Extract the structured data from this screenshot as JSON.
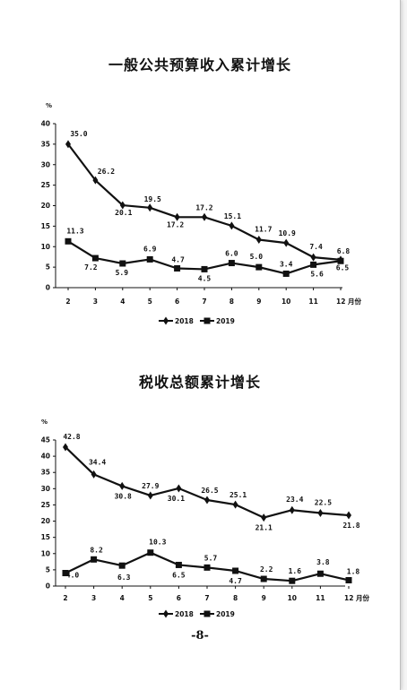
{
  "page_number": "-8-",
  "chart_data": [
    {
      "type": "line",
      "title": "一般公共预算收入累计增长",
      "ylabel": "%",
      "x_tick_labels": [
        "2",
        "3",
        "4",
        "5",
        "6",
        "7",
        "8",
        "9",
        "10",
        "11",
        "12 月份"
      ],
      "ylim": [
        0,
        40
      ],
      "yticks": [
        0,
        5,
        10,
        15,
        20,
        25,
        30,
        35,
        40
      ],
      "legend_placement": "bottom-center",
      "series": [
        {
          "name": "2018",
          "marker": "diamond",
          "values": [
            35.0,
            26.2,
            20.1,
            19.5,
            17.2,
            17.2,
            15.1,
            11.7,
            10.9,
            7.4,
            6.8
          ],
          "labels": [
            "35.0",
            "26.2",
            "20.1",
            "19.5",
            "17.2",
            "17.2",
            "15.1",
            "11.7",
            "10.9",
            "7.4",
            "6.8"
          ]
        },
        {
          "name": "2019",
          "marker": "square",
          "values": [
            11.3,
            7.2,
            5.9,
            6.9,
            4.7,
            4.5,
            6.0,
            5.0,
            3.4,
            5.6,
            6.5
          ],
          "labels": [
            "11.3",
            "7.2",
            "5.9",
            "6.9",
            "4.7",
            "4.5",
            "6.0",
            "5.0",
            "3.4",
            "5.6",
            "6.5"
          ]
        }
      ]
    },
    {
      "type": "line",
      "title": "税收总额累计增长",
      "ylabel": "%",
      "x_tick_labels": [
        "2",
        "3",
        "4",
        "5",
        "6",
        "7",
        "8",
        "9",
        "10",
        "11",
        "12 月份"
      ],
      "ylim": [
        0,
        45
      ],
      "yticks": [
        0,
        5,
        10,
        15,
        20,
        25,
        30,
        35,
        40,
        45
      ],
      "legend_placement": "bottom-center",
      "series": [
        {
          "name": "2018",
          "marker": "diamond",
          "values": [
            42.8,
            34.4,
            30.8,
            27.9,
            30.1,
            26.5,
            25.1,
            21.1,
            23.4,
            22.5,
            21.8
          ],
          "labels": [
            "42.8",
            "34.4",
            "30.8",
            "27.9",
            "30.1",
            "26.5",
            "25.1",
            "21.1",
            "23.4",
            "22.5",
            "21.8"
          ]
        },
        {
          "name": "2019",
          "marker": "square",
          "values": [
            4.0,
            8.2,
            6.3,
            10.3,
            6.5,
            5.7,
            4.7,
            2.2,
            1.6,
            3.8,
            1.8
          ],
          "labels": [
            "4.0",
            "8.2",
            "6.3",
            "10.3",
            "6.5",
            "5.7",
            "4.7",
            "2.2",
            "1.6",
            "3.8",
            "1.8"
          ]
        }
      ]
    }
  ]
}
